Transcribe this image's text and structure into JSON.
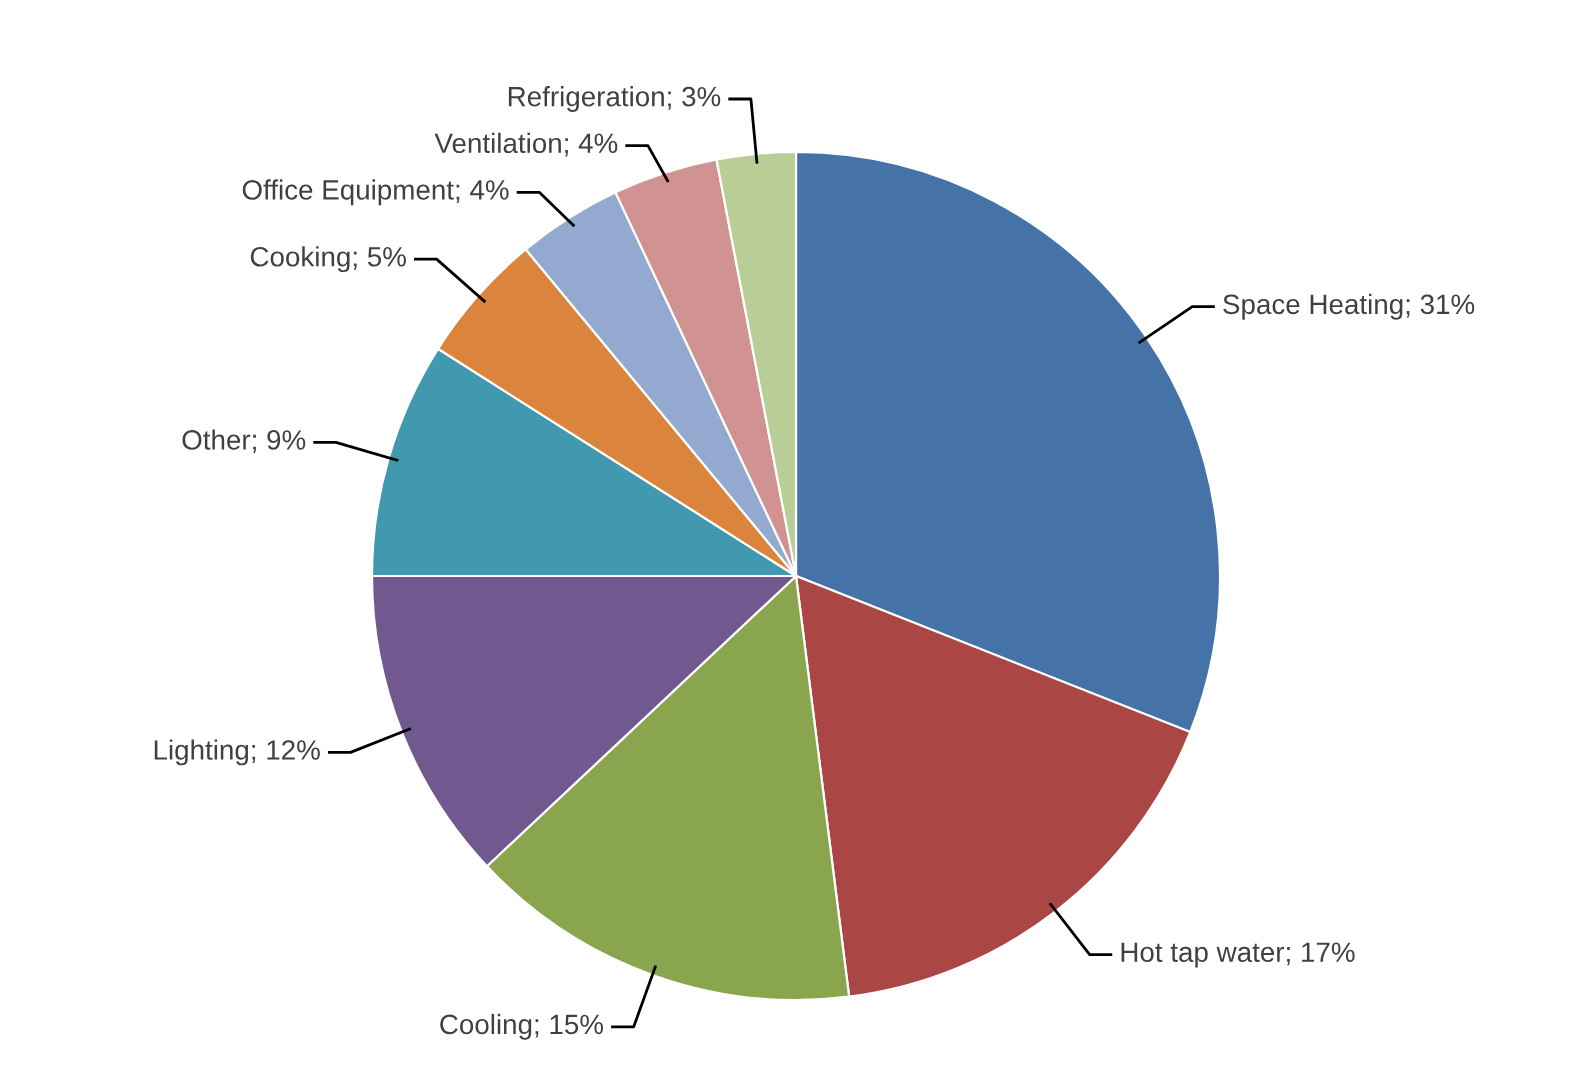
{
  "chart_data": {
    "type": "pie",
    "categories": [
      "Space Heating",
      "Hot tap water",
      "Cooling",
      "Lighting",
      "Other",
      "Cooking",
      "Office Equipment",
      "Ventilation",
      "Refrigeration"
    ],
    "values": [
      31,
      17,
      15,
      12,
      9,
      5,
      4,
      4,
      3
    ],
    "value_labels": [
      "31%",
      "17%",
      "15%",
      "12%",
      "9%",
      "5%",
      "4%",
      "4%",
      "3%"
    ],
    "colors": [
      "#4572a7",
      "#aa4643",
      "#89a54e",
      "#71588f",
      "#4198af",
      "#db843d",
      "#93a9cf",
      "#d19392",
      "#b9cd96"
    ],
    "legend": false
  }
}
